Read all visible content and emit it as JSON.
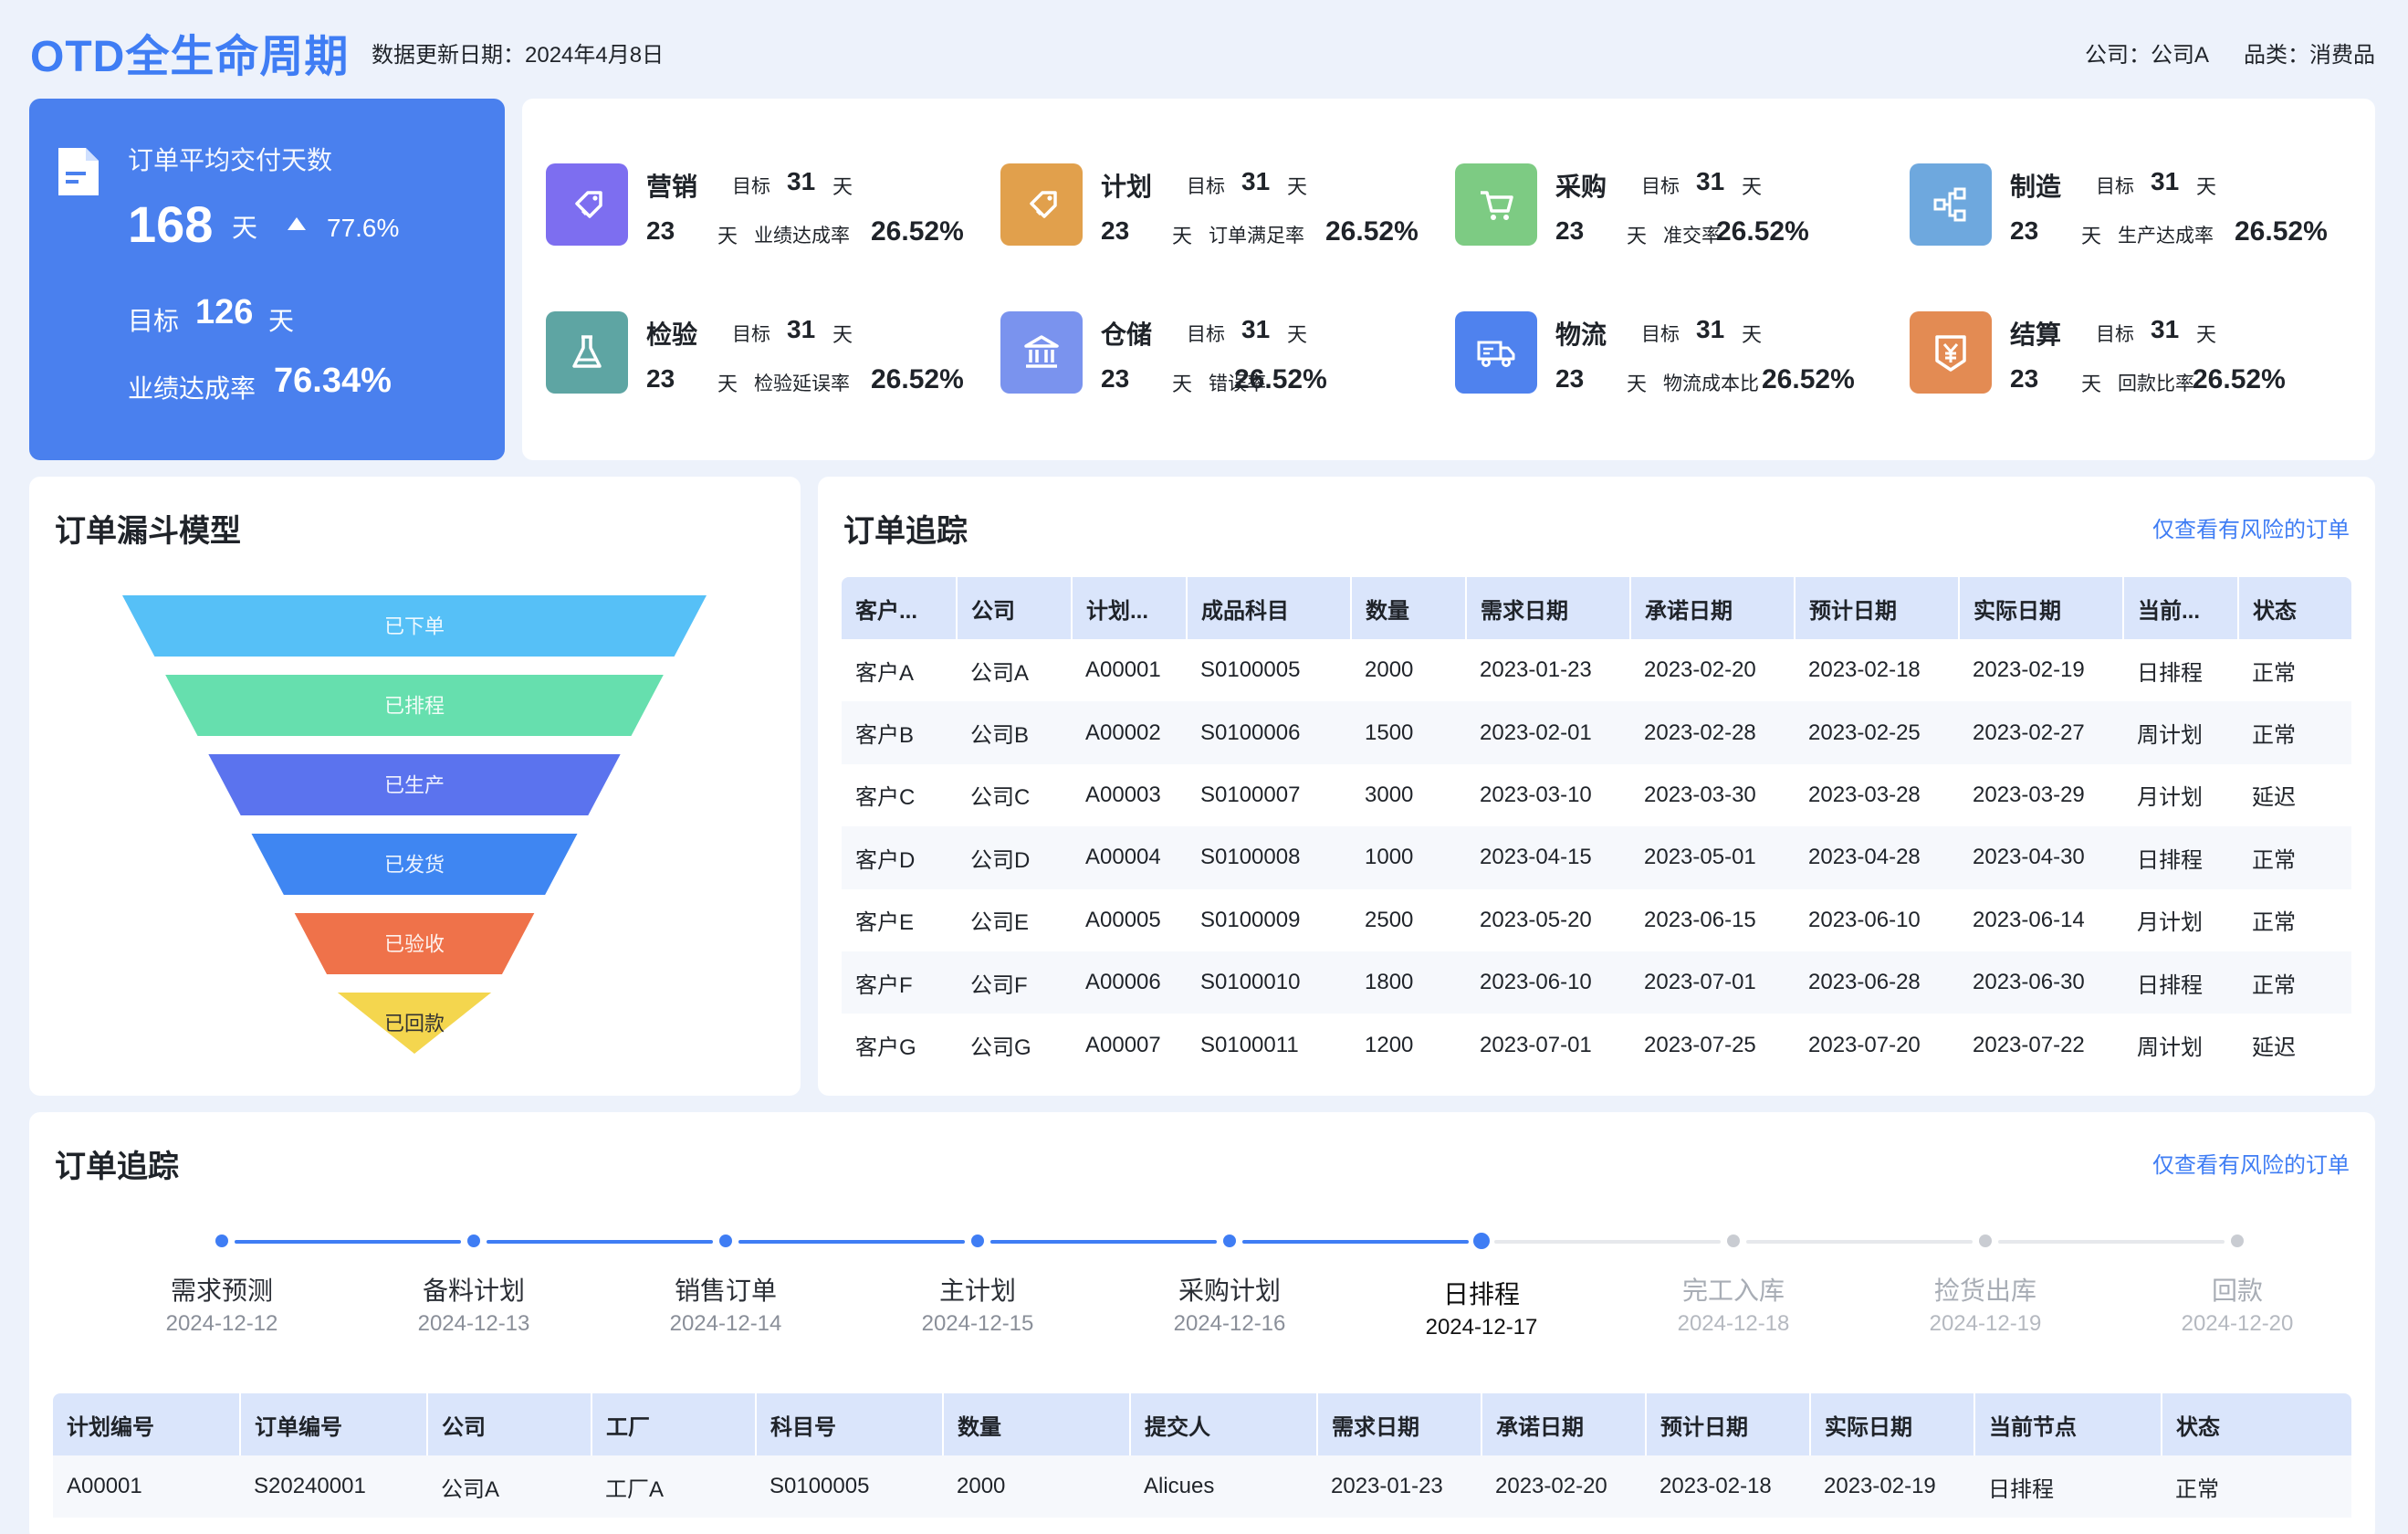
{
  "header": {
    "title": "OTD全生命周期",
    "update_label": "数据更新日期：2024年4月8日",
    "company_filter": "公司：公司A",
    "category_filter": "品类：消费品"
  },
  "summary": {
    "title": "订单平均交付天数",
    "days": "168",
    "days_unit": "天",
    "change": "77.6%",
    "target_label": "目标",
    "target_value": "126",
    "target_unit": "天",
    "achieve_label": "业绩达成率",
    "achieve_value": "76.34%"
  },
  "kpis": [
    {
      "name": "营销",
      "icon": "tag-icon",
      "color": "#7d6ef0",
      "target_label": "目标",
      "target": "31",
      "unit": "天",
      "value": "23",
      "rate_label": "业绩达成率",
      "rate": "26.52%"
    },
    {
      "name": "计划",
      "icon": "tag-icon",
      "color": "#e1a04c",
      "target_label": "目标",
      "target": "31",
      "unit": "天",
      "value": "23",
      "rate_label": "订单满足率",
      "rate": "26.52%"
    },
    {
      "name": "采购",
      "icon": "cart-icon",
      "color": "#7dcb83",
      "target_label": "目标",
      "target": "31",
      "unit": "天",
      "value": "23",
      "rate_label": "准交率",
      "rate": "26.52%"
    },
    {
      "name": "制造",
      "icon": "hierarchy-icon",
      "color": "#6ea8de",
      "target_label": "目标",
      "target": "31",
      "unit": "天",
      "value": "23",
      "rate_label": "生产达成率",
      "rate": "26.52%"
    },
    {
      "name": "检验",
      "icon": "flask-icon",
      "color": "#5ea5a3",
      "target_label": "目标",
      "target": "31",
      "unit": "天",
      "value": "23",
      "rate_label": "检验延误率",
      "rate": "26.52%"
    },
    {
      "name": "仓储",
      "icon": "bank-icon",
      "color": "#7a93ee",
      "target_label": "目标",
      "target": "31",
      "unit": "天",
      "value": "23",
      "rate_label": "错误率",
      "rate": "26.52%"
    },
    {
      "name": "物流",
      "icon": "truck-icon",
      "color": "#4f82ee",
      "target_label": "目标",
      "target": "31",
      "unit": "天",
      "value": "23",
      "rate_label": "物流成本比",
      "rate": "26.52%"
    },
    {
      "name": "结算",
      "icon": "yen-icon",
      "color": "#e38b53",
      "target_label": "目标",
      "target": "31",
      "unit": "天",
      "value": "23",
      "rate_label": "回款比率",
      "rate": "26.52%"
    }
  ],
  "funnel": {
    "title": "订单漏斗模型",
    "stages": [
      {
        "label": "已下单",
        "color": "#56c0f7"
      },
      {
        "label": "已排程",
        "color": "#66dfae"
      },
      {
        "label": "已生产",
        "color": "#5b73ee"
      },
      {
        "label": "已发货",
        "color": "#3f86f2"
      },
      {
        "label": "已验收",
        "color": "#ef724a"
      },
      {
        "label": "已回款",
        "color": "#f4d64e"
      }
    ]
  },
  "tracking": {
    "title": "订单追踪",
    "risk_link": "仅查看有风险的订单",
    "columns": [
      "客户...",
      "公司",
      "计划...",
      "成品科目",
      "数量",
      "需求日期",
      "承诺日期",
      "预计日期",
      "实际日期",
      "当前...",
      "状态"
    ],
    "rows": [
      [
        "客户A",
        "公司A",
        "A00001",
        "S0100005",
        "2000",
        "2023-01-23",
        "2023-02-20",
        "2023-02-18",
        "2023-02-19",
        "日排程",
        "正常"
      ],
      [
        "客户B",
        "公司B",
        "A00002",
        "S0100006",
        "1500",
        "2023-02-01",
        "2023-02-28",
        "2023-02-25",
        "2023-02-27",
        "周计划",
        "正常"
      ],
      [
        "客户C",
        "公司C",
        "A00003",
        "S0100007",
        "3000",
        "2023-03-10",
        "2023-03-30",
        "2023-03-28",
        "2023-03-29",
        "月计划",
        "延迟"
      ],
      [
        "客户D",
        "公司D",
        "A00004",
        "S0100008",
        "1000",
        "2023-04-15",
        "2023-05-01",
        "2023-04-28",
        "2023-04-30",
        "日排程",
        "正常"
      ],
      [
        "客户E",
        "公司E",
        "A00005",
        "S0100009",
        "2500",
        "2023-05-20",
        "2023-06-15",
        "2023-06-10",
        "2023-06-14",
        "月计划",
        "正常"
      ],
      [
        "客户F",
        "公司F",
        "A00006",
        "S0100010",
        "1800",
        "2023-06-10",
        "2023-07-01",
        "2023-06-28",
        "2023-06-30",
        "日排程",
        "正常"
      ],
      [
        "客户G",
        "公司G",
        "A00007",
        "S0100011",
        "1200",
        "2023-07-01",
        "2023-07-25",
        "2023-07-20",
        "2023-07-22",
        "周计划",
        "延迟"
      ]
    ]
  },
  "timeline": {
    "title": "订单追踪",
    "risk_link": "仅查看有风险的订单",
    "current_index": 5,
    "steps": [
      {
        "label": "需求预测",
        "date": "2024-12-12"
      },
      {
        "label": "备料计划",
        "date": "2024-12-13"
      },
      {
        "label": "销售订单",
        "date": "2024-12-14"
      },
      {
        "label": "主计划",
        "date": "2024-12-15"
      },
      {
        "label": "采购计划",
        "date": "2024-12-16"
      },
      {
        "label": "日排程",
        "date": "2024-12-17"
      },
      {
        "label": "完工入库",
        "date": "2024-12-18"
      },
      {
        "label": "捡货出库",
        "date": "2024-12-19"
      },
      {
        "label": "回款",
        "date": "2024-12-20"
      }
    ],
    "columns": [
      "计划编号",
      "订单编号",
      "公司",
      "工厂",
      "科目号",
      "数量",
      "提交人",
      "需求日期",
      "承诺日期",
      "预计日期",
      "实际日期",
      "当前节点",
      "状态"
    ],
    "rows": [
      [
        "A00001",
        "S20240001",
        "公司A",
        "工厂A",
        "S0100005",
        "2000",
        "Alicues",
        "2023-01-23",
        "2023-02-20",
        "2023-02-18",
        "2023-02-19",
        "日排程",
        "正常"
      ]
    ]
  }
}
